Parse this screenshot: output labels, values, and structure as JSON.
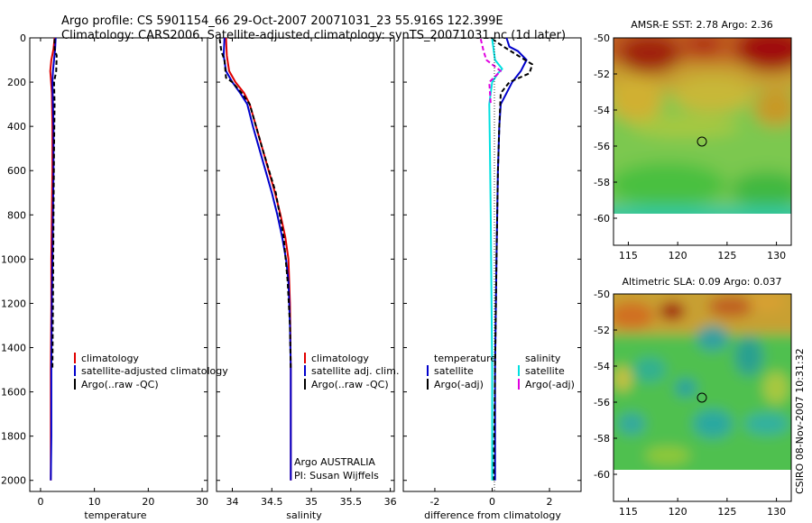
{
  "figure": {
    "title_line1": "Argo profile: CS 5901154_66 29-Oct-2007 20071031_23 55.916S 122.399E",
    "title_line2": "Climatology: CARS2006. Satellite-adjusted climatology: synTS_20071031.nc (1d later)",
    "credit": "CSIRO 08-Nov-2007 10:31:32"
  },
  "colors": {
    "climatology": "#e00000",
    "satellite": "#0000cc",
    "argo": "#000000",
    "salinity_satellite": "#00e0e0",
    "salinity_argo": "#e000e0"
  },
  "chart_data": [
    {
      "type": "line",
      "id": "temperature",
      "xlabel": "temperature",
      "ylabel": "",
      "xlim": [
        -2,
        31
      ],
      "ylim": [
        2050,
        0
      ],
      "xticks": [
        0,
        10,
        20,
        30
      ],
      "yticks": [
        0,
        200,
        400,
        600,
        800,
        1000,
        1200,
        1400,
        1600,
        1800,
        2000
      ],
      "legend": [
        "climatology",
        "satellite-adjusted climatology",
        "Argo(..raw -QC)"
      ],
      "series": [
        {
          "name": "climatology",
          "style": "solid",
          "color": "#e00000",
          "x": [
            2.6,
            2.4,
            2.0,
            1.8,
            1.9,
            2.1,
            2.2,
            2.2,
            2.1,
            2.0,
            2.0,
            1.9,
            1.9,
            1.9
          ],
          "y": [
            0,
            50,
            100,
            150,
            180,
            250,
            400,
            600,
            800,
            1000,
            1200,
            1500,
            1800,
            2000
          ]
        },
        {
          "name": "satellite-adjusted climatology",
          "style": "solid",
          "color": "#0000cc",
          "x": [
            2.8,
            2.7,
            2.5,
            2.3,
            2.2,
            2.3,
            2.4,
            2.4,
            2.3,
            2.2,
            2.1,
            2.0,
            2.0,
            1.9
          ],
          "y": [
            0,
            50,
            100,
            150,
            200,
            300,
            400,
            600,
            800,
            1000,
            1200,
            1500,
            1800,
            2000
          ]
        },
        {
          "name": "Argo(..raw -QC)",
          "style": "dashed",
          "color": "#000000",
          "x": [
            2.6,
            2.6,
            3.0,
            2.9,
            2.5,
            2.6,
            2.5,
            2.4,
            2.3,
            2.2
          ],
          "y": [
            5,
            50,
            80,
            150,
            200,
            300,
            500,
            800,
            1200,
            1500
          ]
        }
      ]
    },
    {
      "type": "line",
      "id": "salinity",
      "xlabel": "salinity",
      "ylabel": "",
      "xlim": [
        33.8,
        36.05
      ],
      "ylim": [
        2050,
        0
      ],
      "xticks": [
        34,
        34.5,
        35,
        35.5,
        36
      ],
      "legend": [
        "climatology",
        "satellite adj. clim.",
        "Argo(..raw -QC)"
      ],
      "annotation": [
        "Argo AUSTRALIA",
        "PI: Susan Wijffels"
      ],
      "series": [
        {
          "name": "climatology",
          "style": "solid",
          "color": "#e00000",
          "x": [
            33.92,
            33.93,
            33.96,
            34.04,
            34.15,
            34.22,
            34.3,
            34.38,
            34.46,
            34.54,
            34.61,
            34.67,
            34.71,
            34.73,
            34.74,
            34.74,
            34.74
          ],
          "y": [
            0,
            80,
            150,
            200,
            250,
            300,
            400,
            500,
            600,
            700,
            800,
            900,
            1000,
            1200,
            1500,
            1800,
            2000
          ]
        },
        {
          "name": "satellite adj. clim.",
          "style": "solid",
          "color": "#0000cc",
          "x": [
            33.9,
            33.89,
            33.92,
            34.0,
            34.1,
            34.19,
            34.26,
            34.34,
            34.42,
            34.5,
            34.57,
            34.63,
            34.68,
            34.71,
            34.73,
            34.74,
            34.74,
            34.74
          ],
          "y": [
            0,
            80,
            150,
            200,
            250,
            300,
            400,
            500,
            600,
            700,
            800,
            900,
            1000,
            1100,
            1300,
            1500,
            1800,
            2000
          ]
        },
        {
          "name": "Argo(..raw -QC)",
          "style": "dashed",
          "color": "#000000",
          "x": [
            33.84,
            33.86,
            33.9,
            33.92,
            34.0,
            34.12,
            34.22,
            34.38,
            34.55,
            34.65,
            34.7,
            34.73,
            34.74
          ],
          "y": [
            5,
            60,
            100,
            180,
            200,
            250,
            300,
            500,
            700,
            900,
            1100,
            1300,
            1500
          ]
        }
      ]
    },
    {
      "type": "line",
      "id": "difference",
      "xlabel": "difference from climatology",
      "ylabel": "",
      "xlim": [
        -3.1,
        3.1
      ],
      "ylim": [
        2050,
        0
      ],
      "xticks": [
        -2,
        0,
        2
      ],
      "legend_headers": [
        "temperature",
        "salinity"
      ],
      "legend": [
        "satellite",
        "Argo(-adj)",
        "satellite",
        "Argo(-adj)"
      ],
      "series": [
        {
          "name": "temperature satellite",
          "style": "solid",
          "color": "#0000cc",
          "x": [
            0.5,
            0.6,
            0.9,
            1.2,
            1.0,
            0.7,
            0.5,
            0.3,
            0.25,
            0.2,
            0.15,
            0.1,
            0.1
          ],
          "y": [
            0,
            40,
            60,
            100,
            150,
            200,
            250,
            300,
            400,
            600,
            1000,
            1500,
            2000
          ]
        },
        {
          "name": "temperature Argo(-adj)",
          "style": "dashed",
          "color": "#000000",
          "x": [
            0.0,
            0.4,
            0.9,
            1.4,
            1.3,
            0.6,
            0.3,
            0.25,
            0.2,
            0.15,
            0.1,
            0.05
          ],
          "y": [
            5,
            40,
            80,
            120,
            160,
            200,
            250,
            400,
            600,
            1000,
            1500,
            2000
          ]
        },
        {
          "name": "salinity satellite",
          "style": "solid",
          "color": "#00e0e0",
          "x": [
            0.0,
            0.1,
            0.35,
            0.2,
            0.0,
            -0.1,
            -0.08,
            -0.05,
            0.0,
            0.0
          ],
          "y": [
            5,
            100,
            140,
            160,
            200,
            300,
            500,
            800,
            1500,
            2000
          ]
        },
        {
          "name": "salinity Argo(-adj)",
          "style": "dashed",
          "color": "#e000e0",
          "x": [
            -0.4,
            -0.3,
            -0.2,
            0.0,
            0.3,
            -0.1,
            -0.05
          ],
          "y": [
            5,
            60,
            100,
            120,
            150,
            200,
            300
          ]
        }
      ]
    },
    {
      "type": "heatmap",
      "id": "sst_map",
      "title": "AMSR-E SST: 2.78 Argo: 2.36",
      "xlim": [
        113.5,
        131.5
      ],
      "ylim": [
        -61.5,
        -50
      ],
      "xticks": [
        115,
        120,
        125,
        130
      ],
      "yticks": [
        -50,
        -52,
        -54,
        -56,
        -58,
        -60
      ],
      "profile_location": [
        122.4,
        -55.9
      ]
    },
    {
      "type": "heatmap",
      "id": "sla_map",
      "title": "Altimetric SLA: 0.09 Argo: 0.037",
      "xlim": [
        113.5,
        131.5
      ],
      "ylim": [
        -61.5,
        -50
      ],
      "xticks": [
        115,
        120,
        125,
        130
      ],
      "yticks": [
        -50,
        -52,
        -54,
        -56,
        -58,
        -60
      ],
      "profile_location": [
        122.4,
        -55.9
      ]
    }
  ]
}
